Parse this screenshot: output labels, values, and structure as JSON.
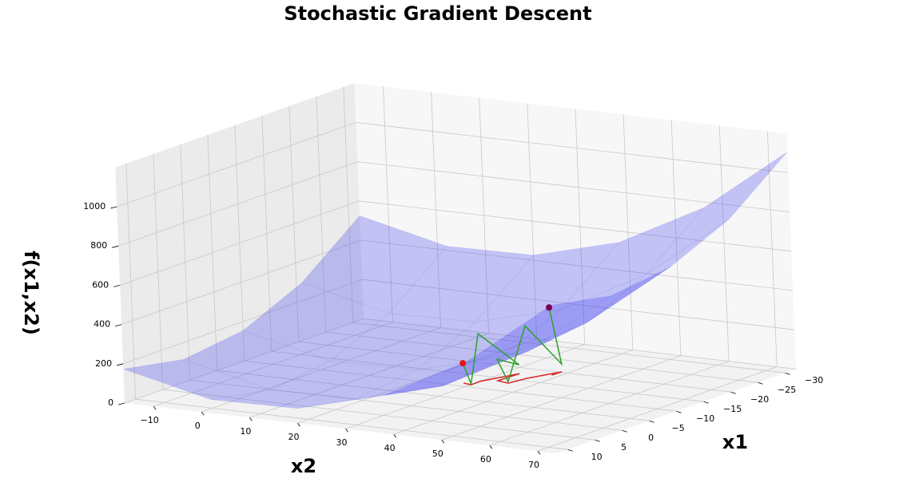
{
  "chart_data": {
    "type": "surface3d",
    "title": "Stochastic Gradient Descent",
    "x1_label": "x1",
    "x2_label": "x2",
    "z_label": "f(x1,x2)",
    "x1lim": [
      -32,
      12
    ],
    "x2lim": [
      -16,
      74
    ],
    "zlim": [
      0,
      1200
    ],
    "x1ticks": [
      {
        "value": 10,
        "label": "10"
      },
      {
        "value": 5,
        "label": "5"
      },
      {
        "value": 0,
        "label": "0"
      },
      {
        "value": -5,
        "label": "−5"
      },
      {
        "value": -10,
        "label": "−10"
      },
      {
        "value": -15,
        "label": "−15"
      },
      {
        "value": -20,
        "label": "−20"
      },
      {
        "value": -25,
        "label": "−25"
      },
      {
        "value": -30,
        "label": "−30"
      }
    ],
    "x2ticks": [
      {
        "value": -10,
        "label": "−10"
      },
      0,
      10,
      20,
      30,
      40,
      50,
      60,
      70
    ],
    "zticks": [
      0,
      200,
      400,
      600,
      800,
      1000
    ],
    "grid": true,
    "surface": {
      "color": "#3b3bf0",
      "x1": [
        -32,
        -21,
        -10,
        1,
        12
      ],
      "x2": [
        -16,
        2,
        20,
        38,
        56,
        74
      ],
      "f": [
        [
          525,
          421,
          427,
          543,
          770,
          1106
        ],
        [
          291,
          187,
          193,
          309,
          536,
          872
        ],
        [
          155,
          51,
          57,
          173,
          400,
          736
        ],
        [
          115,
          11,
          17,
          133,
          360,
          696
        ],
        [
          173,
          69,
          75,
          191,
          418,
          754
        ]
      ]
    },
    "path": {
      "color": "#2ca02c",
      "projection_color": "#d62728",
      "start_color": "#e8140c",
      "end_color": "#800050",
      "x1": [
        -11.3,
        -11.0,
        -12.7,
        -17.6,
        -13.8,
        -13.3,
        -16.1,
        -20.2,
        -18.5
      ],
      "x2": [
        28.2,
        30.1,
        30.0,
        32.7,
        32.5,
        35.2,
        36.0,
        38.6,
        38.4
      ],
      "f": [
        101,
        4,
        243,
        45,
        109,
        8,
        267,
        40,
        344
      ]
    }
  }
}
